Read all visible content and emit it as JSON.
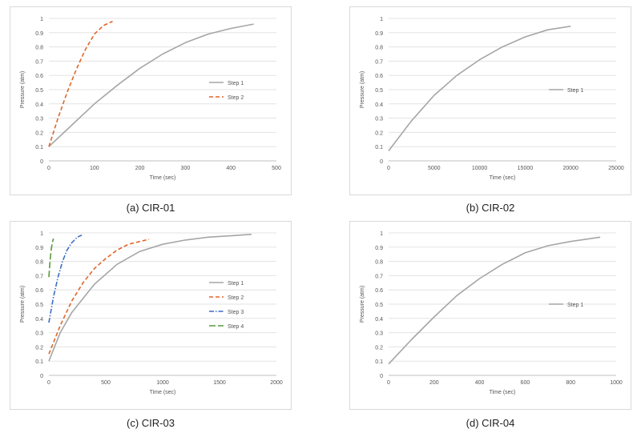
{
  "chart_data": [
    {
      "type": "line",
      "caption": "(a) CIR-01",
      "xlabel": "Time (sec)",
      "ylabel": "Pressure (atm)",
      "xlim": [
        0,
        500
      ],
      "ylim": [
        0,
        1
      ],
      "xticks": [
        0,
        100,
        200,
        300,
        400,
        500
      ],
      "yticks": [
        0,
        0.1,
        0.2,
        0.3,
        0.4,
        0.5,
        0.6,
        0.7,
        0.8,
        0.9,
        1
      ],
      "legend_position": "right",
      "series": [
        {
          "name": "Step 1",
          "color": "#a6a6a6",
          "dash": "solid",
          "x": [
            0,
            50,
            100,
            150,
            200,
            250,
            300,
            350,
            400,
            450
          ],
          "y": [
            0.1,
            0.25,
            0.4,
            0.53,
            0.65,
            0.75,
            0.83,
            0.89,
            0.93,
            0.96
          ]
        },
        {
          "name": "Step 2",
          "color": "#e0662a",
          "dash": "dashed",
          "x": [
            0,
            20,
            40,
            60,
            80,
            100,
            120,
            140
          ],
          "y": [
            0.1,
            0.3,
            0.48,
            0.64,
            0.78,
            0.89,
            0.95,
            0.98
          ]
        }
      ]
    },
    {
      "type": "line",
      "caption": "(b) CIR-02",
      "xlabel": "Time (sec)",
      "ylabel": "Pressure (atm)",
      "xlim": [
        0,
        25000
      ],
      "ylim": [
        0,
        1
      ],
      "xticks": [
        0,
        5000,
        10000,
        15000,
        20000,
        25000
      ],
      "yticks": [
        0,
        0.1,
        0.2,
        0.3,
        0.4,
        0.5,
        0.6,
        0.7,
        0.8,
        0.9,
        1
      ],
      "legend_position": "right",
      "series": [
        {
          "name": "Step 1",
          "color": "#a6a6a6",
          "dash": "solid",
          "x": [
            0,
            2500,
            5000,
            7500,
            10000,
            12500,
            15000,
            17500,
            20000
          ],
          "y": [
            0.07,
            0.28,
            0.46,
            0.6,
            0.71,
            0.8,
            0.87,
            0.92,
            0.945
          ]
        }
      ]
    },
    {
      "type": "line",
      "caption": "(c) CIR-03",
      "xlabel": "Time (sec)",
      "ylabel": "Pressure (atm)",
      "xlim": [
        0,
        2000
      ],
      "ylim": [
        0,
        1
      ],
      "xticks": [
        0,
        500,
        1000,
        1500,
        2000
      ],
      "yticks": [
        0,
        0.1,
        0.2,
        0.3,
        0.4,
        0.5,
        0.6,
        0.7,
        0.8,
        0.9,
        1
      ],
      "legend_position": "right",
      "series": [
        {
          "name": "Step 1",
          "color": "#a6a6a6",
          "dash": "solid",
          "x": [
            0,
            100,
            200,
            400,
            600,
            800,
            1000,
            1200,
            1400,
            1600,
            1780
          ],
          "y": [
            0.1,
            0.3,
            0.44,
            0.64,
            0.78,
            0.87,
            0.92,
            0.95,
            0.97,
            0.98,
            0.99
          ]
        },
        {
          "name": "Step 2",
          "color": "#e0662a",
          "dash": "dashed",
          "x": [
            0,
            100,
            200,
            300,
            400,
            500,
            600,
            700,
            800,
            880
          ],
          "y": [
            0.15,
            0.35,
            0.52,
            0.65,
            0.75,
            0.82,
            0.88,
            0.92,
            0.94,
            0.955
          ]
        },
        {
          "name": "Step 3",
          "color": "#3d6cc4",
          "dash": "dashdot",
          "x": [
            0,
            40,
            80,
            120,
            160,
            200,
            250,
            290
          ],
          "y": [
            0.37,
            0.55,
            0.69,
            0.8,
            0.88,
            0.93,
            0.97,
            0.985
          ]
        },
        {
          "name": "Step 4",
          "color": "#5a9a3a",
          "dash": "longdash",
          "x": [
            0,
            10,
            20,
            30,
            40
          ],
          "y": [
            0.69,
            0.8,
            0.88,
            0.93,
            0.96
          ]
        }
      ]
    },
    {
      "type": "line",
      "caption": "(d) CIR-04",
      "xlabel": "Time (sec)",
      "ylabel": "Pressure (atm)",
      "xlim": [
        0,
        1000
      ],
      "ylim": [
        0,
        1
      ],
      "xticks": [
        0,
        200,
        400,
        600,
        800,
        1000
      ],
      "yticks": [
        0,
        0.1,
        0.2,
        0.3,
        0.4,
        0.5,
        0.6,
        0.7,
        0.8,
        0.9,
        1
      ],
      "legend_position": "right",
      "series": [
        {
          "name": "Step 1",
          "color": "#a6a6a6",
          "dash": "solid",
          "x": [
            0,
            100,
            200,
            300,
            400,
            500,
            600,
            700,
            800,
            930
          ],
          "y": [
            0.08,
            0.25,
            0.41,
            0.56,
            0.68,
            0.78,
            0.86,
            0.91,
            0.94,
            0.97
          ]
        }
      ]
    }
  ]
}
